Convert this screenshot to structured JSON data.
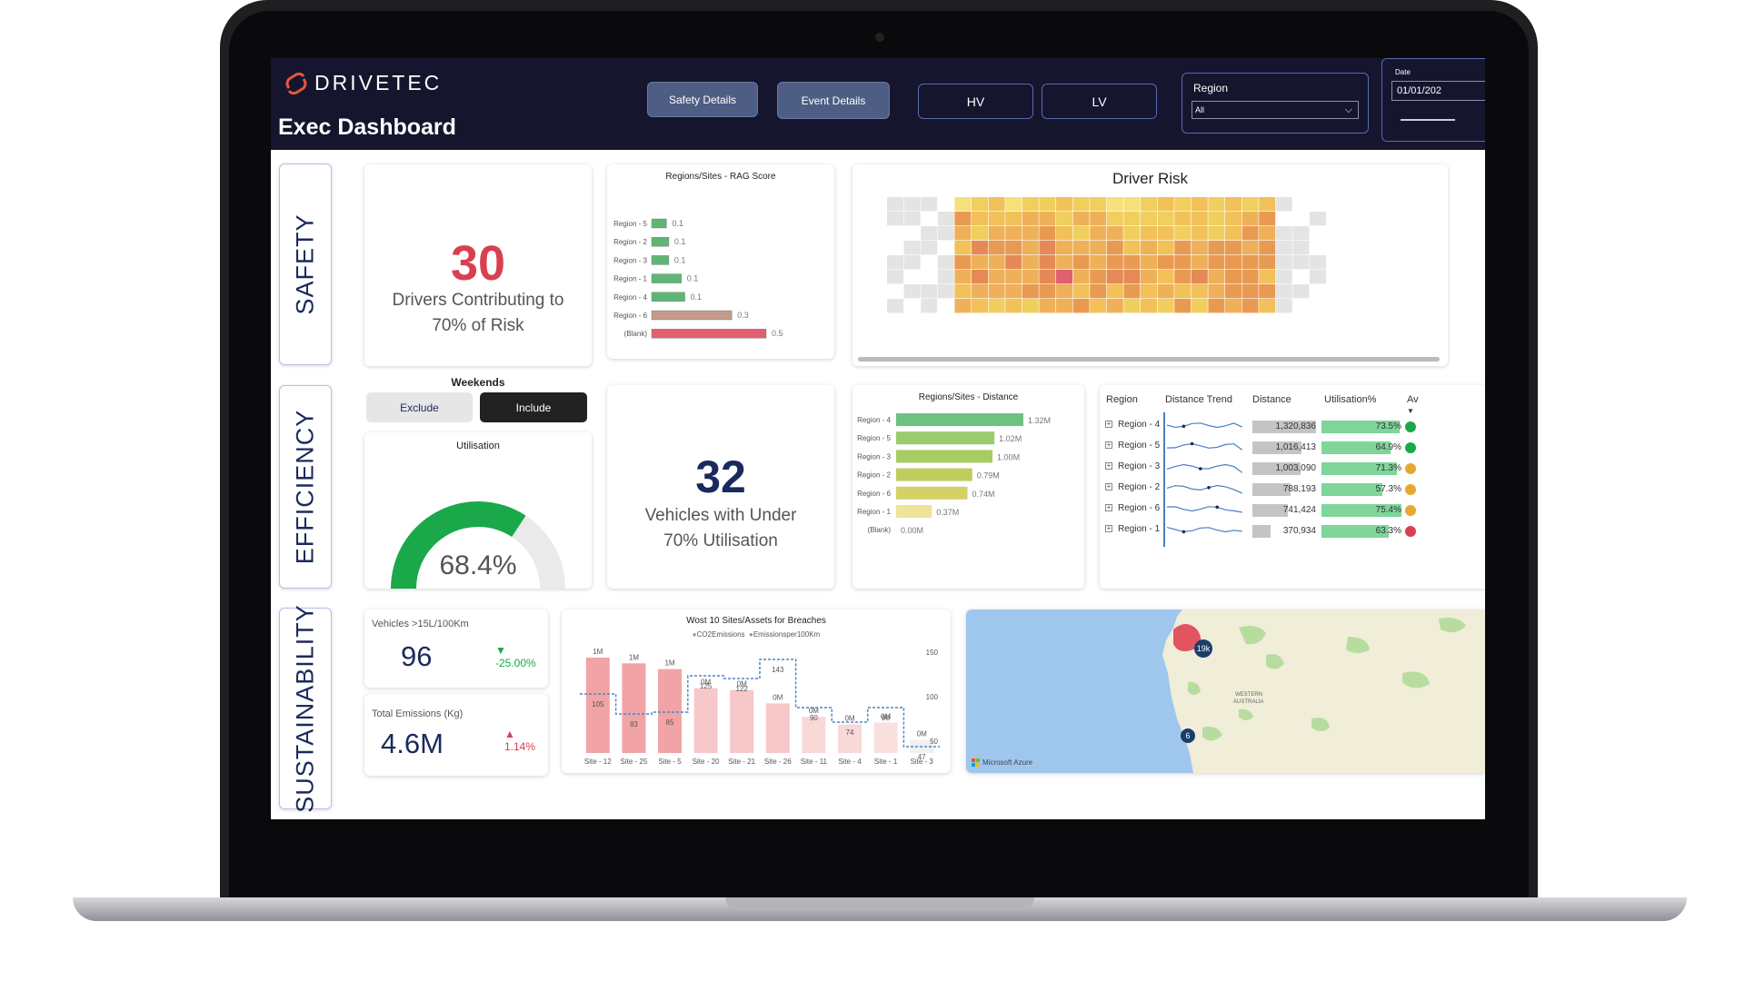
{
  "app": {
    "brand": "DRIVETEC",
    "page_title": "Exec Dashboard",
    "colors": {
      "header_bg": "#15152e",
      "accent_red": "#d9404f",
      "accent_navy": "#1a2a5c",
      "good_green": "#1aa84a"
    }
  },
  "header": {
    "buttons": {
      "safety_details": "Safety Details",
      "event_details": "Event Details",
      "hv": "HV",
      "lv": "LV"
    },
    "region_filter": {
      "label": "Region",
      "value": "All"
    },
    "date_filter": {
      "label": "Date",
      "value": "01/01/202"
    }
  },
  "sections": {
    "safety": "SAFETY",
    "efficiency": "EFFICIENCY",
    "sustainability": "SUSTAINABILITY"
  },
  "safety": {
    "risk_kpi": {
      "value": "30",
      "caption_line1": "Drivers Contributing to",
      "caption_line2": "70% of Risk"
    },
    "rag_chart": {
      "title": "Regions/Sites - RAG Score",
      "chart_data": {
        "type": "bar",
        "categories": [
          "Region - 5",
          "Region - 2",
          "Region - 3",
          "Region - 1",
          "Region - 4",
          "Region - 6",
          "(Blank)"
        ],
        "values": [
          0.1,
          0.1,
          0.1,
          0.1,
          0.1,
          0.3,
          0.5
        ],
        "labels": [
          "0.1",
          "0.1",
          "0.1",
          "0.1",
          "0.1",
          "0.3",
          "0.5"
        ],
        "bar_lengths": [
          0.13,
          0.15,
          0.15,
          0.26,
          0.29,
          0.7,
          1.0
        ],
        "colors": [
          "#5fb575",
          "#5fb575",
          "#5fb575",
          "#5fb575",
          "#5fb575",
          "#c49a8a",
          "#e06070"
        ],
        "xlabel": "",
        "ylabel": ""
      }
    },
    "driver_risk": {
      "title": "Driver Risk"
    }
  },
  "efficiency": {
    "weekends": {
      "title": "Weekends",
      "exclude": "Exclude",
      "include": "Include"
    },
    "utilisation": {
      "title": "Utilisation",
      "value_label": "68.4%",
      "value": 68.4
    },
    "vehicles_kpi": {
      "value": "32",
      "caption_line1": "Vehicles with Under",
      "caption_line2": "70% Utilisation"
    },
    "distance_chart": {
      "title": "Regions/Sites - Distance",
      "chart_data": {
        "type": "bar",
        "categories": [
          "Region - 4",
          "Region - 5",
          "Region - 3",
          "Region - 2",
          "Region - 6",
          "Region - 1",
          "(Blank)"
        ],
        "values": [
          1.32,
          1.02,
          1.0,
          0.79,
          0.74,
          0.37,
          0.0
        ],
        "labels": [
          "1.32M",
          "1.02M",
          "1.00M",
          "0.79M",
          "0.74M",
          "0.37M",
          "0.00M"
        ],
        "colors": [
          "#6cc281",
          "#98cc6e",
          "#a6cc63",
          "#bfcd5e",
          "#d4d166",
          "#efe39a",
          "#ffffff"
        ],
        "xlabel": "",
        "ylabel": ""
      }
    },
    "region_table": {
      "headers": [
        "Region",
        "Distance Trend",
        "Distance",
        "Utilisation%",
        "Av"
      ],
      "rows": [
        {
          "region": "Region - 4",
          "distance": "1,320,836",
          "dist_val": 1320836,
          "util": "73.5%",
          "util_val": 73.5,
          "status": "green"
        },
        {
          "region": "Region - 5",
          "distance": "1,016,413",
          "dist_val": 1016413,
          "util": "64.9%",
          "util_val": 64.9,
          "status": "green"
        },
        {
          "region": "Region - 3",
          "distance": "1,003,090",
          "dist_val": 1003090,
          "util": "71.3%",
          "util_val": 71.3,
          "status": "amber"
        },
        {
          "region": "Region - 2",
          "distance": "788,193",
          "dist_val": 788193,
          "util": "57.3%",
          "util_val": 57.3,
          "status": "amber"
        },
        {
          "region": "Region - 6",
          "distance": "741,424",
          "dist_val": 741424,
          "util": "75.4%",
          "util_val": 75.4,
          "status": "amber"
        },
        {
          "region": "Region - 1",
          "distance": "370,934",
          "dist_val": 370934,
          "util": "63.3%",
          "util_val": 63.3,
          "status": "red"
        }
      ]
    }
  },
  "sustainability": {
    "vehicles_15l": {
      "label": "Vehicles >15L/100Km",
      "value": "96",
      "delta": "▼ -25.00%"
    },
    "total_emissions": {
      "label": "Total Emissions (Kg)",
      "value": "4.6M",
      "delta": "▲ 1.14%"
    },
    "breaches_chart": {
      "title": "Wost 10 Sites/Assets for Breaches",
      "legend": [
        "CO2Emissions",
        "Emissionsper100Km"
      ],
      "chart_data": {
        "type": "bar",
        "categories": [
          "Site - 12",
          "Site - 25",
          "Site - 5",
          "Site - 20",
          "Site - 21",
          "Site - 26",
          "Site - 11",
          "Site - 4",
          "Site - 1",
          "Site - 3"
        ],
        "series": [
          {
            "name": "CO2Emissions",
            "labels": [
              "1M",
              "1M",
              "1M",
              "0M",
              "0M",
              "0M",
              "0M",
              "0M",
              "0M",
              "0M"
            ],
            "heights": [
              1.0,
              0.94,
              0.88,
              0.68,
              0.66,
              0.52,
              0.38,
              0.3,
              0.32,
              0.14
            ]
          },
          {
            "name": "Emissionsper100Km",
            "values": [
              105,
              83,
              85,
              125,
              122,
              143,
              90,
              74,
              90,
              47
            ]
          }
        ],
        "y2_ticks": [
          "150",
          "100",
          "50"
        ]
      }
    },
    "map": {
      "badge_large": "19k",
      "badge_small": "6",
      "region_label_1": "WESTERN",
      "region_label_2": "AUSTRALIA",
      "attribution": "Microsoft Azure"
    }
  }
}
